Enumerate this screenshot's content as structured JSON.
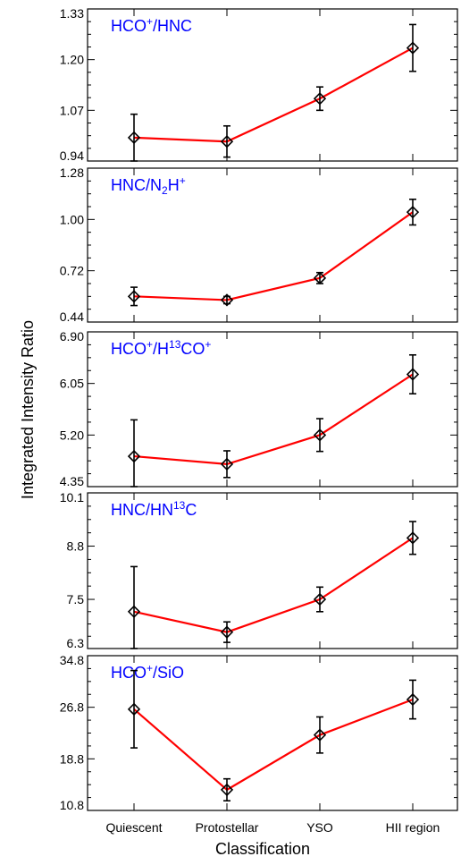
{
  "chart_data": {
    "type": "line",
    "xlabel": "Classification",
    "ylabel": "Integrated Intensity Ratio",
    "categories": [
      "Quiescent",
      "Protostellar",
      "YSO",
      "HII region"
    ],
    "colors": {
      "line": "#ff0000",
      "marker": "#000000",
      "title": "#0000ff"
    },
    "panels": [
      {
        "title_html": "HCO<sup>+</sup>/HNC",
        "title_parts": [
          {
            "t": "HCO"
          },
          {
            "t": "+",
            "s": "sup"
          },
          {
            "t": "/HNC"
          }
        ],
        "ylim": [
          0.94,
          1.33
        ],
        "yticks": [
          "0.94",
          "1.07",
          "1.20",
          "1.33"
        ],
        "values": [
          1.0,
          0.99,
          1.1,
          1.23
        ],
        "errors": [
          0.06,
          0.04,
          0.03,
          0.06
        ]
      },
      {
        "title_parts": [
          {
            "t": "HNC/N"
          },
          {
            "t": "2",
            "s": "sub"
          },
          {
            "t": "H"
          },
          {
            "t": "+",
            "s": "sup"
          }
        ],
        "ylim": [
          0.44,
          1.28
        ],
        "yticks": [
          "0.44",
          "0.72",
          "1.00",
          "1.28"
        ],
        "values": [
          0.58,
          0.56,
          0.68,
          1.04
        ],
        "errors": [
          0.05,
          0.02,
          0.03,
          0.07
        ]
      },
      {
        "title_parts": [
          {
            "t": "HCO"
          },
          {
            "t": "+",
            "s": "sup"
          },
          {
            "t": "/H"
          },
          {
            "t": "13",
            "s": "sup"
          },
          {
            "t": "CO"
          },
          {
            "t": "+",
            "s": "sup"
          }
        ],
        "ylim": [
          4.35,
          6.9
        ],
        "yticks": [
          "4.35",
          "5.20",
          "6.05",
          "6.90"
        ],
        "values": [
          4.85,
          4.72,
          5.2,
          6.2
        ],
        "errors": [
          0.6,
          0.22,
          0.27,
          0.32
        ]
      },
      {
        "title_parts": [
          {
            "t": "HNC/HN"
          },
          {
            "t": "13",
            "s": "sup"
          },
          {
            "t": "C"
          }
        ],
        "ylim": [
          6.3,
          10.1
        ],
        "yticks": [
          "6.3",
          "7.5",
          "8.8",
          "10.1"
        ],
        "values": [
          7.2,
          6.7,
          7.5,
          9.0
        ],
        "errors": [
          1.1,
          0.25,
          0.3,
          0.4
        ]
      },
      {
        "title_parts": [
          {
            "t": "HCO"
          },
          {
            "t": "+",
            "s": "sup"
          },
          {
            "t": "/SiO"
          }
        ],
        "ylim": [
          10.8,
          34.8
        ],
        "yticks": [
          "10.8",
          "18.8",
          "26.8",
          "34.8"
        ],
        "values": [
          26.5,
          14.0,
          22.5,
          28.0
        ],
        "errors": [
          6.0,
          1.7,
          2.8,
          3.0
        ]
      }
    ]
  }
}
